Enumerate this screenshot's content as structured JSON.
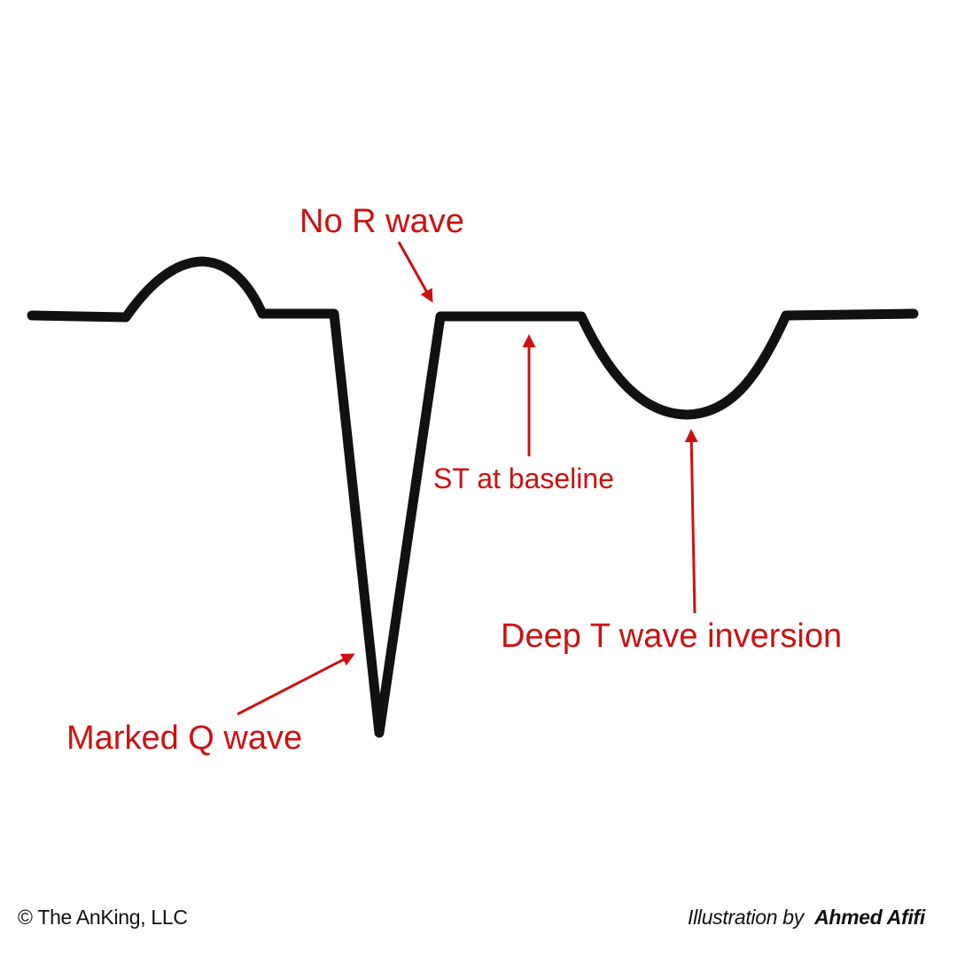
{
  "colors": {
    "trace": "#111111",
    "annotation": "#cc1111",
    "background": "#ffffff"
  },
  "annotations": {
    "no_r_wave": "No R wave",
    "st_baseline": "ST at baseline",
    "deep_t_wave": "Deep T wave inversion",
    "marked_q_wave": "Marked Q wave"
  },
  "footer": {
    "copyright": "© The AnKing, LLC",
    "credit_prefix": "Illustration by",
    "credit_name": "Ahmed Afifi"
  }
}
